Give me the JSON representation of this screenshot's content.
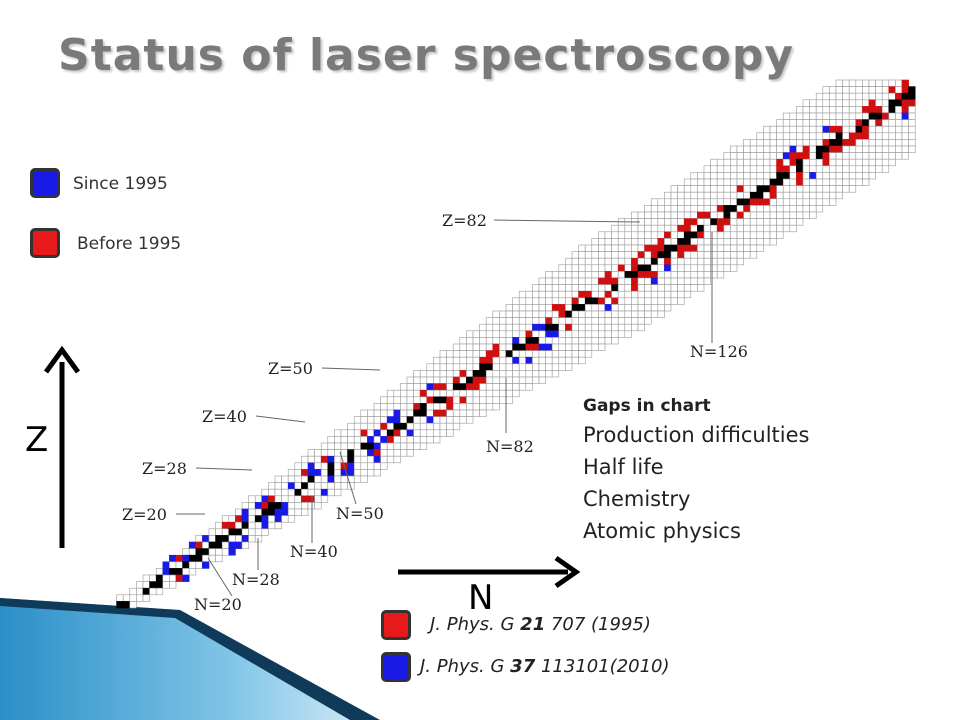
{
  "title": "Status of laser spectroscopy",
  "legend": [
    {
      "label": "Since 1995",
      "color": "#1a1ae6"
    },
    {
      "label": "Before 1995",
      "color": "#e61a1a"
    }
  ],
  "magic_labels": {
    "z82": "Z=82",
    "z50": "Z=50",
    "z40": "Z=40",
    "z28": "Z=28",
    "z20": "Z=20",
    "n20": "N=20",
    "n28": "N=28",
    "n40": "N=40",
    "n50": "N=50",
    "n82": "N=82",
    "n126": "N=126"
  },
  "gaps": {
    "title": "Gaps in chart",
    "items": [
      "Production difficulties",
      "Half life",
      "Chemistry",
      "Atomic physics"
    ]
  },
  "axes": {
    "z": "Z",
    "n": "N"
  },
  "references": [
    {
      "prefix": "J. Phys. G ",
      "vol": "21",
      "rest": " 707 (1995)",
      "color": "#e61a1a"
    },
    {
      "prefix": "J. Phys. G ",
      "vol": "37",
      "rest": " 113101(2010)",
      "color": "#1a1ae6"
    }
  ],
  "colors": {
    "stable": "#000000",
    "known": "#c8c8c8",
    "since1995": "#1a1ae6",
    "before1995": "#d01010"
  }
}
